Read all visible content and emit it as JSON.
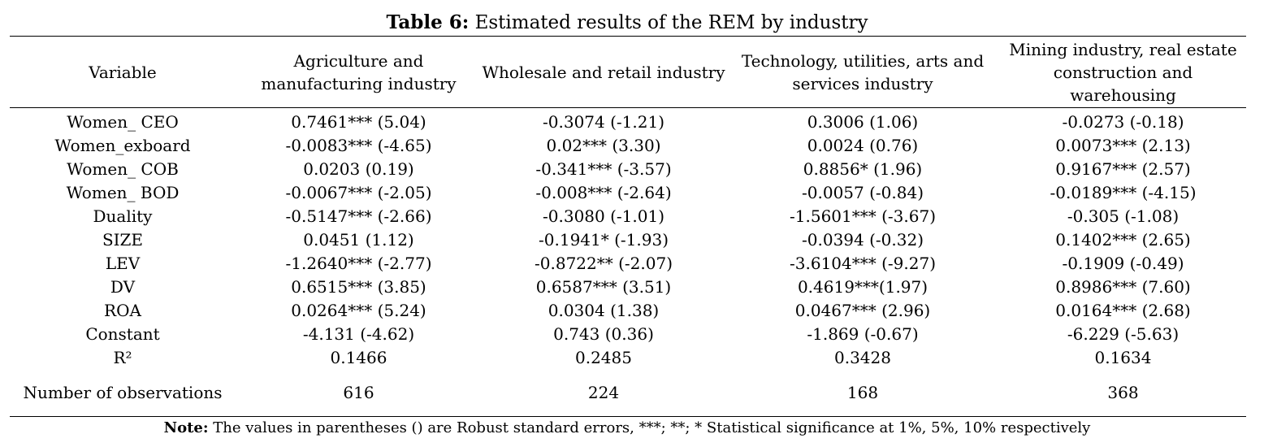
{
  "title": {
    "label": "Table 6:",
    "text": " Estimated results of the REM by industry"
  },
  "table": {
    "headers": [
      "Variable",
      "Agriculture and manufacturing industry",
      "Wholesale and retail industry",
      "Technology, utilities, arts and services industry",
      "Mining industry, real estate construction and warehousing"
    ],
    "rows": [
      [
        "Women_ CEO",
        "0.7461*** (5.04)",
        "-0.3074 (-1.21)",
        "0.3006 (1.06)",
        "-0.0273 (-0.18)"
      ],
      [
        "Women_exboard",
        "-0.0083*** (-4.65)",
        "0.02*** (3.30)",
        "0.0024 (0.76)",
        "0.0073*** (2.13)"
      ],
      [
        "Women_ COB",
        "0.0203 (0.19)",
        "-0.341*** (-3.57)",
        "0.8856* (1.96)",
        "0.9167*** (2.57)"
      ],
      [
        "Women_ BOD",
        "-0.0067*** (-2.05)",
        "-0.008*** (-2.64)",
        "-0.0057 (-0.84)",
        "-0.0189*** (-4.15)"
      ],
      [
        "Duality",
        "-0.5147*** (-2.66)",
        "-0.3080 (-1.01)",
        "-1.5601*** (-3.67)",
        "-0.305 (-1.08)"
      ],
      [
        "SIZE",
        "0.0451 (1.12)",
        "-0.1941* (-1.93)",
        "-0.0394 (-0.32)",
        "0.1402*** (2.65)"
      ],
      [
        "LEV",
        "-1.2640*** (-2.77)",
        "-0.8722** (-2.07)",
        "-3.6104*** (-9.27)",
        "-0.1909 (-0.49)"
      ],
      [
        "DV",
        "0.6515*** (3.85)",
        "0.6587*** (3.51)",
        "0.4619***(1.97)",
        "0.8986*** (7.60)"
      ],
      [
        "ROA",
        "0.0264*** (5.24)",
        "0.0304 (1.38)",
        "0.0467*** (2.96)",
        "0.0164*** (2.68)"
      ],
      [
        "Constant",
        "-4.131 (-4.62)",
        "0.743 (0.36)",
        "-1.869 (-0.67)",
        "-6.229 (-5.63)"
      ],
      [
        "R²",
        "0.1466",
        "0.2485",
        "0.3428",
        "0.1634"
      ],
      [
        "Number of observations",
        "616",
        "224",
        "168",
        "368"
      ]
    ]
  },
  "note": {
    "label": "Note:",
    "text": " The values in parentheses () are Robust standard errors, ***; **; * Statistical significance at 1%, 5%, 10% respectively"
  }
}
